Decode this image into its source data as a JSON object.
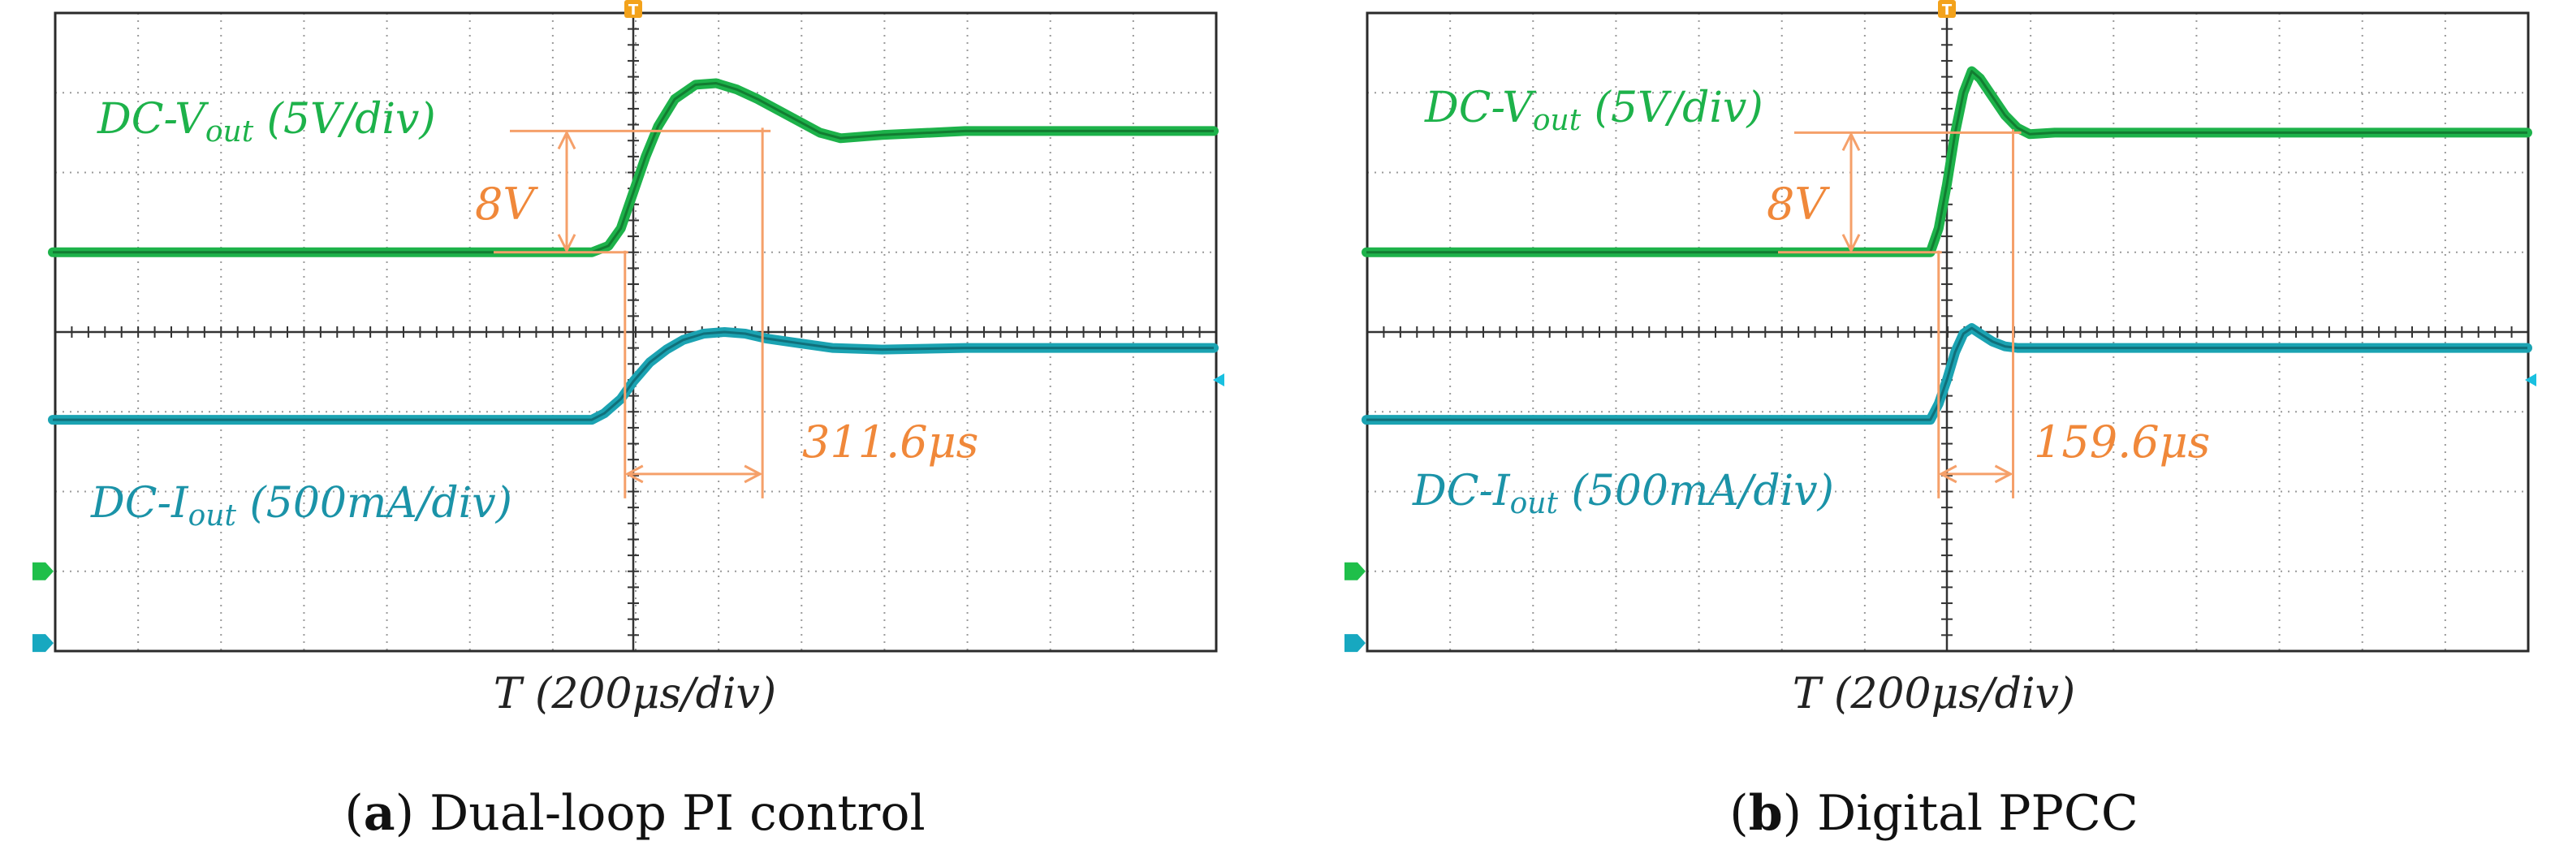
{
  "figure": {
    "panels": [
      {
        "caption_letter": "a",
        "caption_text": " Dual-loop PI control"
      },
      {
        "caption_letter": "b",
        "caption_text": " Digital PPCC"
      }
    ]
  },
  "chart_data": [
    {
      "type": "line",
      "panel": "a",
      "title": "Dual-loop PI control",
      "xlabel": "T (200μs/div)",
      "x_unit": "μs",
      "xlim": [
        -1400,
        1400
      ],
      "ylim": [
        -4,
        4
      ],
      "grid": true,
      "grid_divisions": {
        "x": 14,
        "y": 8
      },
      "trigger_marker": "T",
      "annotations": {
        "step_label": "8V",
        "settling_time_label": "311.6μs",
        "settling_time_us": 311.6,
        "voltage_step_v": 8
      },
      "series": [
        {
          "name": "DC-Vout",
          "label_main": "DC-V",
          "label_sub": "out",
          "label_tail": " (5V/div)",
          "color": "#1db24a",
          "x": [
            -1400,
            -100,
            -60,
            -30,
            0,
            30,
            60,
            100,
            150,
            200,
            250,
            300,
            350,
            400,
            450,
            500,
            600,
            800,
            1400
          ],
          "y": [
            1.0,
            1.0,
            1.08,
            1.3,
            1.75,
            2.2,
            2.58,
            2.92,
            3.1,
            3.12,
            3.04,
            2.92,
            2.78,
            2.64,
            2.5,
            2.43,
            2.47,
            2.52,
            2.52
          ]
        },
        {
          "name": "DC-Iout",
          "label_main": "DC-I",
          "label_sub": "out",
          "label_tail": " (500mA/div)",
          "color": "#1ba3b2",
          "x": [
            -1400,
            -100,
            -70,
            -30,
            0,
            40,
            80,
            120,
            170,
            220,
            270,
            320,
            400,
            480,
            600,
            800,
            1400
          ],
          "y": [
            -1.1,
            -1.1,
            -1.02,
            -0.84,
            -0.62,
            -0.38,
            -0.22,
            -0.1,
            -0.02,
            0.0,
            -0.02,
            -0.08,
            -0.14,
            -0.2,
            -0.22,
            -0.2,
            -0.2
          ]
        }
      ]
    },
    {
      "type": "line",
      "panel": "b",
      "title": "Digital PPCC",
      "xlabel": "T (200μs/div)",
      "x_unit": "μs",
      "xlim": [
        -1400,
        1400
      ],
      "ylim": [
        -4,
        4
      ],
      "grid": true,
      "grid_divisions": {
        "x": 14,
        "y": 8
      },
      "trigger_marker": "T",
      "annotations": {
        "step_label": "8V",
        "settling_time_label": "159.6μs",
        "settling_time_us": 159.6,
        "voltage_step_v": 8
      },
      "series": [
        {
          "name": "DC-Vout",
          "label_main": "DC-V",
          "label_sub": "out",
          "label_tail": " (5V/div)",
          "color": "#1db24a",
          "x": [
            -1400,
            -40,
            -20,
            0,
            20,
            40,
            60,
            80,
            110,
            140,
            170,
            200,
            260,
            400,
            1400
          ],
          "y": [
            1.0,
            1.0,
            1.3,
            1.85,
            2.5,
            3.0,
            3.27,
            3.18,
            2.95,
            2.72,
            2.56,
            2.48,
            2.5,
            2.5,
            2.5
          ]
        },
        {
          "name": "DC-Iout",
          "label_main": "DC-I",
          "label_sub": "out",
          "label_tail": " (500mA/div)",
          "color": "#1ba3b2",
          "x": [
            -1400,
            -40,
            -20,
            0,
            20,
            40,
            60,
            80,
            110,
            140,
            170,
            220,
            1400
          ],
          "y": [
            -1.1,
            -1.1,
            -0.9,
            -0.6,
            -0.25,
            -0.02,
            0.05,
            -0.02,
            -0.12,
            -0.18,
            -0.2,
            -0.2,
            -0.2
          ]
        }
      ]
    }
  ]
}
